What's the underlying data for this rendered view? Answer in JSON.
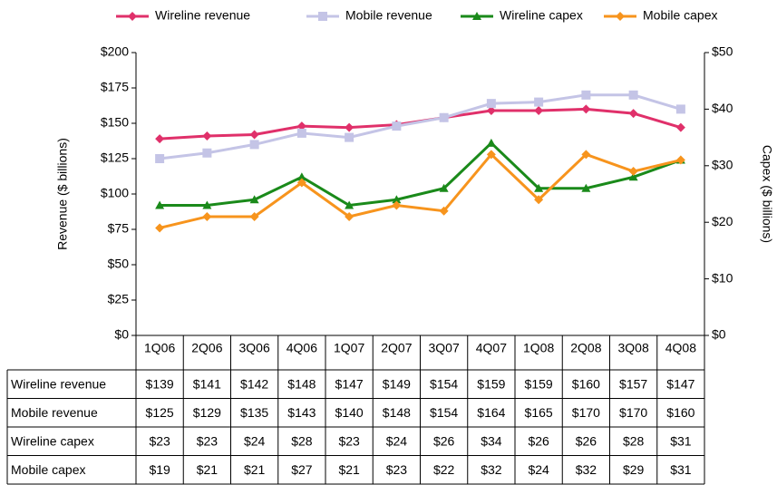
{
  "chart_data": {
    "type": "line",
    "categories": [
      "1Q06",
      "2Q06",
      "3Q06",
      "4Q06",
      "1Q07",
      "2Q07",
      "3Q07",
      "4Q07",
      "1Q08",
      "2Q08",
      "3Q08",
      "4Q08"
    ],
    "series": [
      {
        "name": "Wireline revenue",
        "color": "#e0306a",
        "marker": "diamond",
        "axis": "y",
        "values": [
          139,
          141,
          142,
          148,
          147,
          149,
          154,
          159,
          159,
          160,
          157,
          147
        ],
        "value_labels": [
          "$139",
          "$141",
          "$142",
          "$148",
          "$147",
          "$149",
          "$154",
          "$159",
          "$159",
          "$160",
          "$157",
          "$147"
        ]
      },
      {
        "name": "Mobile revenue",
        "color": "#c4c4e6",
        "marker": "square",
        "axis": "y",
        "values": [
          125,
          129,
          135,
          143,
          140,
          148,
          154,
          164,
          165,
          170,
          170,
          160
        ],
        "value_labels": [
          "$125",
          "$129",
          "$135",
          "$143",
          "$140",
          "$148",
          "$154",
          "$164",
          "$165",
          "$170",
          "$170",
          "$160"
        ]
      },
      {
        "name": "Wireline capex",
        "color": "#1a8a1a",
        "marker": "triangle",
        "axis": "y2",
        "values": [
          23,
          23,
          24,
          28,
          23,
          24,
          26,
          34,
          26,
          26,
          28,
          31
        ],
        "value_labels": [
          "$23",
          "$23",
          "$24",
          "$28",
          "$23",
          "$24",
          "$26",
          "$34",
          "$26",
          "$26",
          "$28",
          "$31"
        ]
      },
      {
        "name": "Mobile capex",
        "color": "#f7941d",
        "marker": "diamond",
        "axis": "y2",
        "values": [
          19,
          21,
          21,
          27,
          21,
          23,
          22,
          32,
          24,
          32,
          29,
          31
        ],
        "value_labels": [
          "$19",
          "$21",
          "$21",
          "$27",
          "$21",
          "$23",
          "$22",
          "$32",
          "$24",
          "$32",
          "$29",
          "$31"
        ]
      }
    ],
    "ylabel": "Revenue ($ billions)",
    "y2label": "Capex ($ billions)",
    "ylim": [
      0,
      200
    ],
    "yticks": [
      {
        "value": 0,
        "label": "$0"
      },
      {
        "value": 25,
        "label": "$25"
      },
      {
        "value": 50,
        "label": "$50"
      },
      {
        "value": 75,
        "label": "$75"
      },
      {
        "value": 100,
        "label": "$100"
      },
      {
        "value": 125,
        "label": "$125"
      },
      {
        "value": 150,
        "label": "$150"
      },
      {
        "value": 175,
        "label": "$175"
      },
      {
        "value": 200,
        "label": "$200"
      }
    ],
    "y2lim": [
      0,
      50
    ],
    "y2ticks": [
      {
        "value": 0,
        "label": "$0"
      },
      {
        "value": 10,
        "label": "$10"
      },
      {
        "value": 20,
        "label": "$20"
      },
      {
        "value": 30,
        "label": "$30"
      },
      {
        "value": 40,
        "label": "$40"
      },
      {
        "value": 50,
        "label": "$50"
      }
    ],
    "legend": "top"
  }
}
